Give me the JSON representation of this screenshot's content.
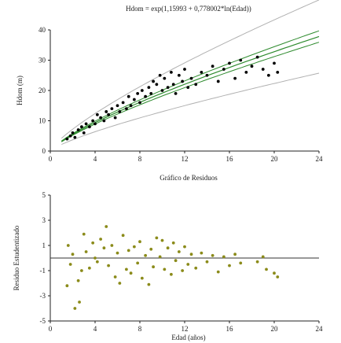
{
  "chart_data": [
    {
      "type": "scatter",
      "title": "Hdom = exp(1,15993 + 0,778002*ln(Edad))",
      "xlabel": "",
      "ylabel": "Hdom (m)",
      "xlim": [
        0,
        24
      ],
      "ylim": [
        0,
        40
      ],
      "xticks": [
        "0",
        "4",
        "8",
        "12",
        "16",
        "20",
        "24"
      ],
      "yticks": [
        "0",
        "10",
        "20",
        "30",
        "40"
      ],
      "grid": false,
      "point_color": "#000000",
      "fit_color": "#2e8b2e",
      "band_color": "#b0b0b0",
      "model": {
        "a": 1.15993,
        "b": 0.778002
      },
      "x": [
        1.5,
        1.8,
        2.0,
        2.2,
        2.5,
        2.8,
        3.0,
        3.2,
        3.5,
        3.8,
        4.0,
        4.2,
        4.5,
        4.8,
        5.0,
        5.2,
        5.5,
        5.8,
        6.0,
        6.2,
        6.5,
        6.8,
        7.0,
        7.2,
        7.5,
        7.8,
        8.0,
        8.2,
        8.5,
        8.8,
        9.0,
        9.2,
        9.5,
        9.8,
        10.0,
        10.2,
        10.5,
        10.8,
        11.0,
        11.2,
        11.5,
        11.8,
        12.0,
        12.3,
        12.6,
        13.0,
        13.5,
        14.0,
        14.5,
        15.0,
        15.5,
        16.0,
        16.5,
        17.0,
        17.5,
        18.0,
        18.5,
        19.0,
        19.5,
        20.0,
        20.3
      ],
      "y": [
        4,
        5,
        6,
        4.5,
        7,
        8,
        6,
        9,
        8,
        10,
        9,
        12,
        11,
        10,
        13,
        12,
        14,
        11,
        15,
        13,
        16,
        14,
        18,
        15,
        17,
        19,
        16,
        20,
        18,
        21,
        19,
        23,
        22,
        25,
        20,
        24,
        21,
        26,
        22,
        19,
        25,
        23,
        27,
        21,
        24,
        22,
        26,
        25,
        28,
        23,
        27,
        29,
        24,
        30,
        26,
        28,
        31,
        27,
        25,
        29,
        26
      ]
    },
    {
      "type": "scatter",
      "title": "Gráfico de Residuos",
      "xlabel": "Edad (años)",
      "ylabel": "Residuo Estudentizado",
      "xlim": [
        0,
        24
      ],
      "ylim": [
        -5,
        5
      ],
      "xticks": [
        "0",
        "4",
        "8",
        "12",
        "16",
        "20",
        "24"
      ],
      "yticks": [
        "5",
        "3",
        "1",
        "-1",
        "-3",
        "-5"
      ],
      "grid": false,
      "point_color": "#8b8b1a",
      "reference_line": 0,
      "x": [
        1.5,
        1.6,
        1.8,
        2.0,
        2.2,
        2.5,
        2.6,
        2.8,
        3.0,
        3.2,
        3.5,
        3.8,
        4.0,
        4.2,
        4.5,
        4.8,
        5.0,
        5.2,
        5.5,
        5.8,
        6.0,
        6.2,
        6.5,
        6.8,
        7.0,
        7.2,
        7.5,
        7.8,
        8.0,
        8.2,
        8.5,
        8.8,
        9.0,
        9.2,
        9.5,
        9.8,
        10.0,
        10.2,
        10.5,
        10.8,
        11.0,
        11.2,
        11.5,
        11.8,
        12.0,
        12.3,
        12.6,
        13.0,
        13.5,
        14.0,
        14.5,
        15.0,
        15.5,
        16.0,
        16.5,
        17.0,
        18.5,
        19.0,
        19.3,
        20.0,
        20.3
      ],
      "y": [
        -2.2,
        1.0,
        -0.5,
        0.3,
        -4.0,
        -1.8,
        -3.5,
        -1.0,
        1.9,
        0.5,
        -0.8,
        1.2,
        0.0,
        -0.3,
        1.5,
        0.8,
        2.5,
        -0.6,
        1.0,
        -1.5,
        0.4,
        -2.0,
        1.8,
        -0.9,
        0.6,
        -1.2,
        0.9,
        -0.4,
        1.3,
        -1.6,
        0.2,
        -2.1,
        0.7,
        -0.7,
        1.6,
        0.1,
        1.4,
        -0.9,
        0.8,
        -1.3,
        1.2,
        -0.2,
        0.5,
        -1.0,
        0.9,
        -0.5,
        0.3,
        -0.8,
        0.4,
        -0.3,
        0.2,
        -1.1,
        0.1,
        -0.6,
        0.3,
        -0.4,
        -0.3,
        0.1,
        -0.9,
        -1.2,
        -1.5
      ]
    }
  ]
}
